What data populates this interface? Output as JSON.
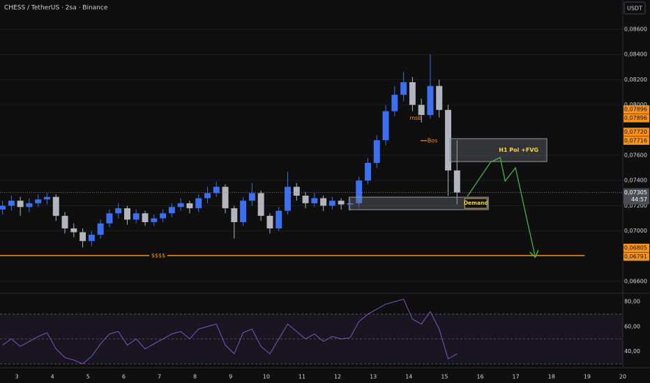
{
  "chart_data": [
    {
      "type": "candlestick",
      "title": "CHESS / TetherUS · 2sa · Binance",
      "currency": "USDT",
      "up_color": "#3d6ff2",
      "down_color": "#b2b5be",
      "x": [
        2.6,
        2.85,
        3.1,
        3.35,
        3.6,
        3.85,
        4.1,
        4.35,
        4.6,
        4.85,
        5.1,
        5.35,
        5.6,
        5.85,
        6.1,
        6.35,
        6.6,
        6.85,
        7.1,
        7.35,
        7.6,
        7.85,
        8.1,
        8.35,
        8.6,
        8.85,
        9.1,
        9.35,
        9.6,
        9.85,
        10.1,
        10.35,
        10.6,
        10.85,
        11.1,
        11.35,
        11.6,
        11.85,
        12.1,
        12.35,
        12.6,
        12.85,
        13.1,
        13.35,
        13.6,
        13.85,
        14.1,
        14.35,
        14.6,
        14.85,
        15.1,
        15.35
      ],
      "open": [
        0.0717,
        0.072,
        0.0724,
        0.0719,
        0.0722,
        0.0725,
        0.0727,
        0.0712,
        0.0702,
        0.0699,
        0.0692,
        0.0697,
        0.0706,
        0.0714,
        0.0718,
        0.0709,
        0.0714,
        0.0707,
        0.071,
        0.0714,
        0.0719,
        0.0722,
        0.0718,
        0.0726,
        0.073,
        0.0735,
        0.0718,
        0.0707,
        0.0724,
        0.073,
        0.0712,
        0.0702,
        0.0716,
        0.0735,
        0.0728,
        0.0722,
        0.0726,
        0.072,
        0.0724,
        0.0721,
        0.0722,
        0.074,
        0.0754,
        0.0772,
        0.0795,
        0.0808,
        0.0818,
        0.08,
        0.0792,
        0.0815,
        0.0796,
        0.0748
      ],
      "high": [
        0.0724,
        0.0728,
        0.0727,
        0.0726,
        0.0729,
        0.073,
        0.0729,
        0.0715,
        0.0706,
        0.0702,
        0.07,
        0.0709,
        0.0717,
        0.0722,
        0.072,
        0.0717,
        0.0716,
        0.0713,
        0.0717,
        0.0722,
        0.0726,
        0.0724,
        0.0729,
        0.0735,
        0.0739,
        0.0737,
        0.072,
        0.0727,
        0.0738,
        0.0732,
        0.0714,
        0.0719,
        0.0747,
        0.0738,
        0.0731,
        0.073,
        0.0728,
        0.0727,
        0.0726,
        0.0726,
        0.0743,
        0.0758,
        0.0776,
        0.08,
        0.0815,
        0.0826,
        0.0822,
        0.0805,
        0.084,
        0.082,
        0.08,
        0.0772
      ],
      "low": [
        0.0713,
        0.0716,
        0.0712,
        0.0715,
        0.0719,
        0.0721,
        0.0708,
        0.0698,
        0.0695,
        0.0687,
        0.0688,
        0.0694,
        0.0703,
        0.071,
        0.0705,
        0.0706,
        0.0704,
        0.0704,
        0.0707,
        0.0711,
        0.0716,
        0.0714,
        0.0715,
        0.0722,
        0.0727,
        0.0714,
        0.0694,
        0.0704,
        0.072,
        0.0708,
        0.0698,
        0.07,
        0.0713,
        0.0724,
        0.0718,
        0.0719,
        0.0716,
        0.0717,
        0.0717,
        0.0716,
        0.0719,
        0.0737,
        0.075,
        0.0768,
        0.0791,
        0.0803,
        0.0795,
        0.0786,
        0.0789,
        0.079,
        0.0728,
        0.0721
      ],
      "close": [
        0.072,
        0.0724,
        0.0719,
        0.0722,
        0.0725,
        0.0727,
        0.0712,
        0.0702,
        0.0699,
        0.0692,
        0.0697,
        0.0706,
        0.0714,
        0.0718,
        0.0709,
        0.0714,
        0.0707,
        0.071,
        0.0714,
        0.0719,
        0.0722,
        0.0718,
        0.0726,
        0.073,
        0.0735,
        0.0718,
        0.0707,
        0.0724,
        0.073,
        0.0712,
        0.0702,
        0.0716,
        0.0735,
        0.0728,
        0.0722,
        0.0726,
        0.072,
        0.0724,
        0.0721,
        0.0722,
        0.074,
        0.0754,
        0.0772,
        0.0795,
        0.0808,
        0.0818,
        0.08,
        0.0792,
        0.0815,
        0.0796,
        0.0748,
        0.07305
      ],
      "xlim": [
        2.53,
        20.0
      ],
      "ylim": [
        0.06512,
        0.08832
      ],
      "yticks": [
        {
          "value": 0.086,
          "label": "0,08600"
        },
        {
          "value": 0.084,
          "label": "0,08400"
        },
        {
          "value": 0.082,
          "label": "0,08200"
        },
        {
          "value": 0.08,
          "label": "0,08000"
        },
        {
          "value": 0.076,
          "label": "0,07600"
        },
        {
          "value": 0.074,
          "label": "0,07400"
        },
        {
          "value": 0.072,
          "label": "0,07200"
        },
        {
          "value": 0.07,
          "label": "0,07000"
        },
        {
          "value": 0.066,
          "label": "0,06600"
        }
      ],
      "zones": [
        {
          "label": "H1 Poi +FVG",
          "x": [
            15.15,
            17.87
          ],
          "y": [
            0.0755,
            0.07732
          ]
        },
        {
          "label": "Demand",
          "x": [
            12.32,
            16.23
          ],
          "y": [
            0.07169,
            0.07268
          ]
        }
      ],
      "levels": [
        {
          "label": "$$$$",
          "value": 0.06805,
          "x_end": 18.93,
          "color": "#f7931a"
        }
      ],
      "annotations": [
        {
          "text": "msb",
          "x": 14.19,
          "y": 0.07896
        },
        {
          "text": "Bos",
          "x": 14.66,
          "y": 0.07716
        }
      ],
      "projection": {
        "color": "#4caf50",
        "x": [
          15.64,
          16.29,
          16.56,
          16.7,
          16.99,
          17.54
        ],
        "y": [
          0.07274,
          0.07545,
          0.07583,
          0.07396,
          0.07501,
          0.06799
        ]
      },
      "last_price": {
        "value": 0.07305,
        "label": "0,07305",
        "countdown": "44:57"
      },
      "price_labels": [
        {
          "color": "#f7931a",
          "values": [
            {
              "value": 0.07896,
              "label": "0,07896"
            },
            {
              "value": 0.07896,
              "label": "0,07896"
            }
          ]
        },
        {
          "color": "#f7931a",
          "values": [
            {
              "value": 0.0772,
              "label": "0,07720"
            },
            {
              "value": 0.07716,
              "label": "0,07716"
            }
          ]
        },
        {
          "color": "#f7931a",
          "values": [
            {
              "value": 0.06805,
              "label": "0,06805"
            },
            {
              "value": 0.06791,
              "label": "0,06791"
            }
          ]
        }
      ]
    },
    {
      "type": "line",
      "color": "#7e57c2",
      "x": [
        2.6,
        2.85,
        3.1,
        3.35,
        3.6,
        3.85,
        4.1,
        4.35,
        4.6,
        4.85,
        5.1,
        5.35,
        5.6,
        5.85,
        6.1,
        6.35,
        6.6,
        6.85,
        7.1,
        7.35,
        7.6,
        7.85,
        8.1,
        8.35,
        8.6,
        8.85,
        9.1,
        9.35,
        9.6,
        9.85,
        10.1,
        10.35,
        10.6,
        10.85,
        11.1,
        11.35,
        11.6,
        11.85,
        12.1,
        12.35,
        12.6,
        12.85,
        13.1,
        13.35,
        13.6,
        13.85,
        14.1,
        14.35,
        14.6,
        14.85,
        15.1,
        15.35
      ],
      "values": [
        45,
        50,
        44,
        48,
        52,
        55,
        42,
        35,
        33,
        30,
        36,
        46,
        54,
        56,
        45,
        50,
        42,
        46,
        50,
        54,
        56,
        50,
        58,
        60,
        62,
        45,
        38,
        55,
        58,
        44,
        38,
        50,
        62,
        56,
        50,
        54,
        48,
        52,
        50,
        51,
        64,
        70,
        74,
        78,
        80,
        82,
        66,
        62,
        72,
        58,
        34,
        38
      ],
      "levels": [
        70,
        50,
        30
      ],
      "xlim": [
        2.53,
        20.0
      ],
      "xticks": [
        3,
        4,
        5,
        6,
        7,
        8,
        9,
        10,
        11,
        12,
        13,
        14,
        15,
        16,
        17,
        18,
        19,
        20
      ],
      "ylim": [
        26.86,
        86.86
      ],
      "yticks": [
        {
          "value": 80,
          "label": "80,00"
        },
        {
          "value": 60,
          "label": "60,00"
        },
        {
          "value": 40,
          "label": "40,00"
        }
      ]
    }
  ]
}
